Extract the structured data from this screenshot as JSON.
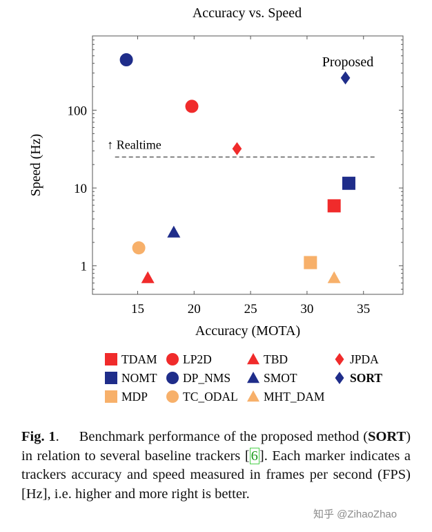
{
  "chart_data": {
    "type": "scatter",
    "title": "Accuracy vs. Speed",
    "xlabel": "Accuracy (MOTA)",
    "ylabel": "Speed (Hz)",
    "xlim": [
      11,
      38.5
    ],
    "ylim": [
      0.43,
      900
    ],
    "yscale": "log",
    "xticks": [
      "15",
      "20",
      "25",
      "30",
      "35"
    ],
    "yticks": [
      "1",
      "10",
      "100"
    ],
    "realtime_label": "↑ Realtime",
    "realtime_value": 25,
    "annotation": "Proposed",
    "points": [
      {
        "name": "TDAM",
        "mota": 32.4,
        "hz": 5.9,
        "shape": "square",
        "color": "#f02b2b"
      },
      {
        "name": "LP2D",
        "mota": 19.8,
        "hz": 112,
        "shape": "circle",
        "color": "#f02b2b"
      },
      {
        "name": "TBD",
        "mota": 15.9,
        "hz": 0.7,
        "shape": "triangle",
        "color": "#f02b2b"
      },
      {
        "name": "JPDA",
        "mota": 23.8,
        "hz": 32,
        "shape": "diamond",
        "color": "#f02b2b"
      },
      {
        "name": "NOMT",
        "mota": 33.7,
        "hz": 11.5,
        "shape": "square",
        "color": "#1f2d8a"
      },
      {
        "name": "DP_NMS",
        "mota": 14.0,
        "hz": 444,
        "shape": "circle",
        "color": "#1f2d8a"
      },
      {
        "name": "SMOT",
        "mota": 18.2,
        "hz": 2.7,
        "shape": "triangle",
        "color": "#1f2d8a"
      },
      {
        "name": "SORT",
        "mota": 33.4,
        "hz": 260,
        "shape": "diamond",
        "color": "#1f2d8a",
        "bold": true
      },
      {
        "name": "MDP",
        "mota": 30.3,
        "hz": 1.1,
        "shape": "square",
        "color": "#f7b06a"
      },
      {
        "name": "TC_ODAL",
        "mota": 15.1,
        "hz": 1.7,
        "shape": "circle",
        "color": "#f7b06a"
      },
      {
        "name": "MHT_DAM",
        "mota": 32.4,
        "hz": 0.7,
        "shape": "triangle",
        "color": "#f7b06a"
      }
    ]
  },
  "legend": {
    "items": [
      {
        "label": "TDAM",
        "shape": "square",
        "color": "#f02b2b"
      },
      {
        "label": "LP2D",
        "shape": "circle",
        "color": "#f02b2b"
      },
      {
        "label": "TBD",
        "shape": "triangle",
        "color": "#f02b2b"
      },
      {
        "label": "JPDA",
        "shape": "diamond",
        "color": "#f02b2b"
      },
      {
        "label": "NOMT",
        "shape": "square",
        "color": "#1f2d8a"
      },
      {
        "label": "DP_NMS",
        "shape": "circle",
        "color": "#1f2d8a"
      },
      {
        "label": "SMOT",
        "shape": "triangle",
        "color": "#1f2d8a"
      },
      {
        "label": "SORT",
        "shape": "diamond",
        "color": "#1f2d8a",
        "bold": true
      },
      {
        "label": "MDP",
        "shape": "square",
        "color": "#f7b06a"
      },
      {
        "label": "TC_ODAL",
        "shape": "circle",
        "color": "#f7b06a"
      },
      {
        "label": "MHT_DAM",
        "shape": "triangle",
        "color": "#f7b06a"
      }
    ]
  },
  "caption": {
    "label": "Fig. 1",
    "period": ".",
    "text_before": "Benchmark performance of the proposed method (",
    "method": "SORT",
    "text_middle": ") in relation to several baseline trackers [",
    "ref": "6",
    "text_after": "]. Each marker indicates a trackers accuracy and speed measured in frames per second (FPS) [Hz], i.e. higher and more right is better."
  },
  "watermark": "知乎 @ZihaoZhao"
}
